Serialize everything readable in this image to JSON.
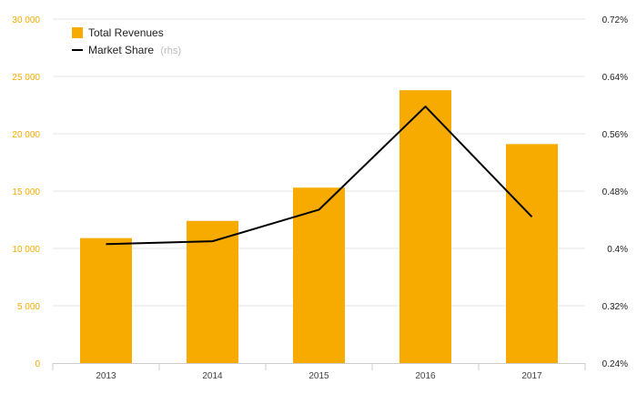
{
  "colors": {
    "bar": "#f7ab00",
    "line": "#000000",
    "left_axis_text": "#f7ab00",
    "right_axis_text": "#222222",
    "grid": "#e6e6e6",
    "background": "#ffffff"
  },
  "legend": {
    "position": "top-left",
    "items": [
      {
        "label": "Total Revenues",
        "suffix": "",
        "symbol": "square"
      },
      {
        "label": "Market Share",
        "suffix": "(rhs)",
        "symbol": "line"
      }
    ]
  },
  "chart_data": {
    "type": "bar",
    "categories": [
      "2013",
      "2014",
      "2015",
      "2016",
      "2017"
    ],
    "series": [
      {
        "name": "Total Revenues",
        "type": "bar",
        "axis": "left",
        "values": [
          10900,
          12400,
          15300,
          23800,
          19100
        ]
      },
      {
        "name": "Market Share",
        "type": "line",
        "axis": "right",
        "values": [
          0.406,
          0.41,
          0.454,
          0.598,
          0.444
        ]
      }
    ],
    "y_left": {
      "range": [
        0,
        30000
      ],
      "tick_values": [
        0,
        5000,
        10000,
        15000,
        20000,
        25000,
        30000
      ],
      "tick_labels": [
        "0",
        "5 000",
        "10 000",
        "15 000",
        "20 000",
        "25 000",
        "30 000"
      ]
    },
    "y_right": {
      "range": [
        0.24,
        0.72
      ],
      "unit": "%",
      "tick_values": [
        0.24,
        0.32,
        0.4,
        0.48,
        0.56,
        0.64,
        0.72
      ],
      "tick_labels": [
        "0.24%",
        "0.32%",
        "0.4%",
        "0.48%",
        "0.56%",
        "0.64%",
        "0.72%"
      ]
    },
    "grid": true,
    "title": "",
    "xlabel": "",
    "ylabel": ""
  }
}
